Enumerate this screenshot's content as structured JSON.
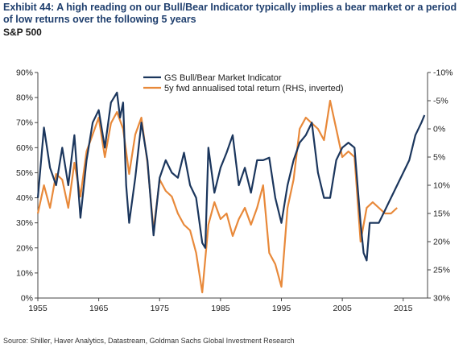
{
  "header": {
    "title": "Exhibit 44: A high reading on our Bull/Bear Indicator typically implies a bear market or a period of low returns over the following 5 years",
    "subtitle": "S&P 500"
  },
  "footer": {
    "source": "Source: Shiller, Haver Analytics, Datastream, Goldman Sachs Global Investment Research"
  },
  "colors": {
    "indicator": "#1b365d",
    "returns": "#e8893a",
    "axis": "#444444"
  },
  "chart_data": {
    "type": "line",
    "title": "",
    "xlim": [
      1955,
      2019
    ],
    "x_ticks": [
      1955,
      1965,
      1975,
      1985,
      1995,
      2005,
      2015
    ],
    "ylim_left": [
      0,
      90
    ],
    "y_ticks_left": [
      "0%",
      "10%",
      "20%",
      "30%",
      "40%",
      "50%",
      "60%",
      "70%",
      "80%",
      "90%"
    ],
    "ylim_right_inverted": [
      -10,
      30
    ],
    "y_ticks_right": [
      "-10%",
      "-5%",
      "0%",
      "5%",
      "10%",
      "15%",
      "20%",
      "25%",
      "30%"
    ],
    "legend_position": "top-center",
    "series": [
      {
        "name": "GS Bull/Bear Market Indicator",
        "axis": "left",
        "color": "#1b365d",
        "x": [
          1955,
          1956,
          1957,
          1958,
          1959,
          1960,
          1961,
          1962,
          1963,
          1964,
          1965,
          1966,
          1967,
          1968,
          1968.5,
          1969,
          1969.5,
          1970,
          1971,
          1972,
          1973,
          1974,
          1975,
          1976,
          1977,
          1978,
          1979,
          1980,
          1981,
          1982,
          1982.5,
          1983,
          1984,
          1985,
          1986,
          1987,
          1988,
          1989,
          1990,
          1991,
          1992,
          1993,
          1994,
          1995,
          1996,
          1997,
          1998,
          1999,
          2000,
          2001,
          2002,
          2003,
          2004,
          2005,
          2006,
          2007,
          2008,
          2008.5,
          2009,
          2009.5,
          2010,
          2011,
          2012,
          2013,
          2014,
          2015,
          2016,
          2017,
          2018,
          2018.5
        ],
        "y": [
          40,
          68,
          52,
          45,
          60,
          45,
          65,
          32,
          55,
          70,
          75,
          60,
          78,
          82,
          72,
          78,
          45,
          30,
          48,
          70,
          55,
          25,
          48,
          55,
          50,
          48,
          58,
          45,
          40,
          22,
          20,
          60,
          42,
          52,
          58,
          65,
          45,
          52,
          42,
          55,
          55,
          56,
          40,
          30,
          45,
          55,
          62,
          65,
          70,
          50,
          40,
          40,
          55,
          60,
          62,
          60,
          30,
          18,
          15,
          30,
          30,
          30,
          35,
          40,
          45,
          50,
          55,
          65,
          70,
          73
        ]
      },
      {
        "name": "5y fwd annualised total return (RHS, inverted)",
        "axis": "right",
        "color": "#e8893a",
        "x": [
          1955,
          1956,
          1957,
          1958,
          1959,
          1960,
          1961,
          1962,
          1963,
          1964,
          1965,
          1966,
          1967,
          1968,
          1969,
          1970,
          1971,
          1972,
          1973,
          1974,
          1975,
          1976,
          1977,
          1978,
          1979,
          1980,
          1981,
          1982,
          1983,
          1984,
          1985,
          1986,
          1987,
          1988,
          1989,
          1990,
          1991,
          1992,
          1993,
          1994,
          1995,
          1996,
          1997,
          1998,
          1999,
          2000,
          2001,
          2002,
          2003,
          2004,
          2005,
          2006,
          2007,
          2008,
          2009,
          2010,
          2011,
          2012,
          2013,
          2014
        ],
        "y": [
          15,
          10,
          14,
          8,
          9,
          14,
          6,
          12,
          4,
          1,
          -2,
          5,
          -1,
          -3,
          0,
          8,
          1,
          -2,
          6,
          18,
          9,
          11,
          12,
          15,
          17,
          18,
          22,
          29,
          17,
          13,
          16,
          15,
          19,
          16,
          14,
          17,
          14,
          10,
          22,
          24,
          28,
          14,
          9,
          0,
          -2,
          -1,
          0,
          2,
          -5,
          0,
          5,
          4,
          5,
          20,
          14,
          13,
          14,
          15,
          15,
          14
        ]
      }
    ]
  }
}
